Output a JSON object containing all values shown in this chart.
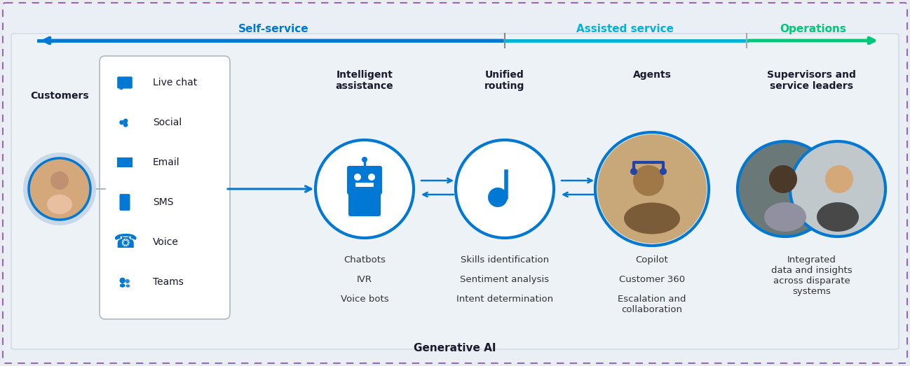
{
  "bg_color": "#e8ecf0",
  "outer_bg": "#e4e9ef",
  "inner_bg": "#edf1f6",
  "blue": "#0078d4",
  "teal": "#00b4d8",
  "green": "#00c87a",
  "dark": "#1a1a2e",
  "mid_gray": "#555555",
  "light_gray": "#aaaaaa",
  "purple_dashed": "#9966bb",
  "figsize": [
    12.98,
    5.23
  ],
  "dpi": 100,
  "customers_label": "Customers",
  "channels": [
    "Live chat",
    "Social",
    "Email",
    "SMS",
    "Voice",
    "Teams"
  ],
  "ia_title": "Intelligent\nassistance",
  "ia_items": [
    "Chatbots",
    "IVR",
    "Voice bots"
  ],
  "ur_title": "Unified\nrouting",
  "ur_items": [
    "Skills identification",
    "Sentiment analysis",
    "Intent determination"
  ],
  "ag_title": "Agents",
  "ag_items": [
    "Copilot",
    "Customer 360",
    "Escalation and\ncollaboration"
  ],
  "sv_title": "Supervisors and\nservice leaders",
  "sv_items": [
    "Integrated\ndata and insights\nacross disparate\nsystems"
  ],
  "generative_ai": "Generative AI",
  "self_service_label": "Self-service",
  "assisted_label": "Assisted service",
  "operations_label": "Operations"
}
